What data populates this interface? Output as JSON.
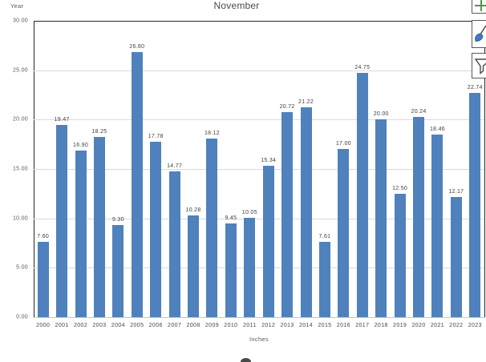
{
  "chart_data": {
    "type": "bar",
    "title": "November",
    "axis_top_left_label": "Year",
    "xlabel": "Inches",
    "categories": [
      "2000",
      "2001",
      "2002",
      "2003",
      "2004",
      "2005",
      "2006",
      "2007",
      "2008",
      "2009",
      "2010",
      "2011",
      "2012",
      "2013",
      "2014",
      "2015",
      "2016",
      "2017",
      "2018",
      "2019",
      "2020",
      "2021",
      "2022",
      "2023"
    ],
    "values": [
      7.6,
      19.47,
      16.9,
      18.25,
      9.3,
      26.8,
      17.78,
      14.77,
      10.28,
      18.12,
      9.45,
      10.05,
      15.34,
      20.72,
      21.22,
      7.61,
      17.0,
      24.75,
      20.0,
      12.5,
      20.24,
      18.46,
      12.17,
      22.74
    ],
    "data_labels": [
      "7.60",
      "19.47",
      "16.90",
      "18.25",
      "9.30",
      "26.80",
      "17.78",
      "14.77",
      "10.28",
      "18.12",
      "9.45",
      "10.05",
      "15.34",
      "20.72",
      "21.22",
      "7.61",
      "17.00",
      "24.75",
      "20.00",
      "12.50",
      "20.24",
      "18.46",
      "12.17",
      "22.74"
    ],
    "y_ticks": [
      "30.00",
      "25.00",
      "20.00",
      "15.00",
      "10.00",
      "5.00",
      "0.00"
    ],
    "ylim": [
      0,
      30
    ],
    "grid": true,
    "legend": "none",
    "bar_color": "#4F81BD"
  },
  "colors": {
    "bar": "#4F81BD",
    "gridline": "#dadada",
    "plot_border": "#262626",
    "axis_line": "#c6c6c6",
    "tick_text": "#595959",
    "label_text": "#404040",
    "plus_green": "#4C9A48",
    "brush_blue": "#3E7CC0",
    "brush_outline": "#2E5E94",
    "funnel_outline": "#4a4a4a"
  },
  "side_buttons": {
    "chart_elements": {
      "icon": "plus-icon"
    },
    "chart_styles": {
      "icon": "paintbrush-icon"
    },
    "chart_filters": {
      "icon": "funnel-icon"
    }
  }
}
